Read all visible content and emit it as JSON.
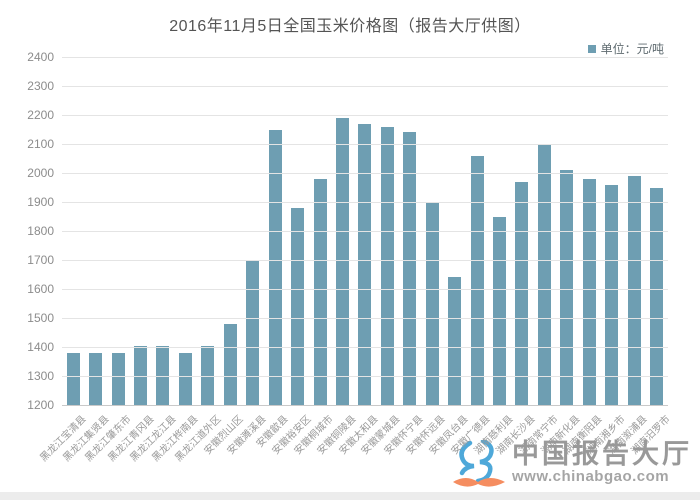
{
  "title": "2016年11月5日全国玉米价格图（报告大厅供图）",
  "legend": {
    "label": "单位：元/吨",
    "marker_color": "#6e9eb2"
  },
  "chart_data": {
    "type": "bar",
    "title": "2016年11月5日全国玉米价格图（报告大厅供图）",
    "unit": "元/吨",
    "categories": [
      "黑龙江宝清县",
      "黑龙江集贤县",
      "黑龙江肇东市",
      "黑龙江青冈县",
      "黑龙江龙江县",
      "黑龙江桦南县",
      "黑龙江道外区",
      "安徽烈山区",
      "安徽濉溪县",
      "安徽歙县",
      "安徽裕安区",
      "安徽桐城市",
      "安徽铜陵县",
      "安徽太和县",
      "安徽蒙城县",
      "安徽怀宁县",
      "安徽怀远县",
      "安徽凤台县",
      "安徽广德县",
      "湖南慈利县",
      "湖南长沙县",
      "湖南常宁市",
      "湖南新化县",
      "湖南衡阳县",
      "湖南湘乡市",
      "湖南溆浦县",
      "湖南汨罗市"
    ],
    "values": [
      1380,
      1380,
      1380,
      1405,
      1405,
      1380,
      1405,
      1480,
      1700,
      2150,
      1880,
      1980,
      2190,
      2170,
      2160,
      2140,
      1900,
      1640,
      2060,
      1850,
      1970,
      2100,
      2010,
      1980,
      1960,
      1990,
      1950
    ],
    "xlabel": "",
    "ylabel": "",
    "ylim": [
      1200,
      2400
    ],
    "ytick_step": 100,
    "grid": true,
    "legend_position": "top-right",
    "bar_color": "#6e9eb2"
  },
  "watermark": {
    "site_name": "中国报告大厅",
    "site_url": "www.chinabgao.com",
    "logo_blue": "#3b9fd5",
    "logo_orange": "#f4814f"
  }
}
